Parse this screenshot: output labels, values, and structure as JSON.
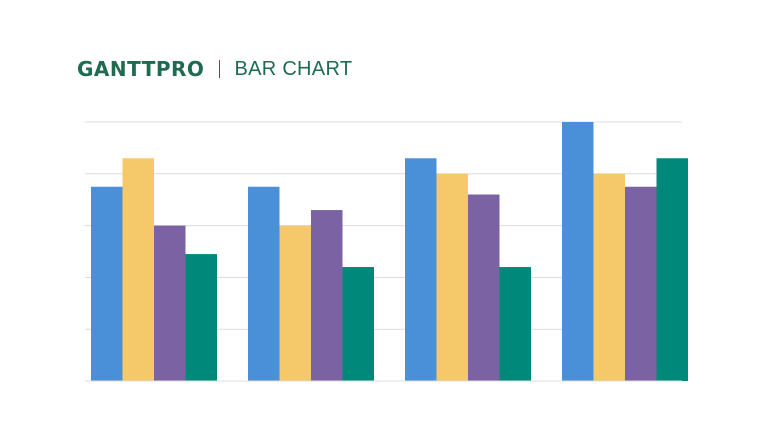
{
  "header": {
    "brand": "GANTTPRO",
    "title": "BAR CHART"
  },
  "colors": {
    "brand": "#1e6b4f",
    "series": [
      "#4a90d9",
      "#f5c96a",
      "#7b62a3",
      "#00897b"
    ],
    "grid": "#dcdcdc"
  },
  "chart_data": {
    "type": "bar",
    "title": "",
    "xlabel": "",
    "ylabel": "",
    "categories": [
      "",
      "",
      "",
      ""
    ],
    "ylim": [
      0,
      5
    ],
    "grid": true,
    "legend": "none",
    "series": [
      {
        "values": [
          3.75,
          3.75,
          4.3,
          5.0
        ]
      },
      {
        "values": [
          4.3,
          3.0,
          4.0,
          4.0
        ]
      },
      {
        "values": [
          3.0,
          3.3,
          3.6,
          3.75
        ]
      },
      {
        "values": [
          2.45,
          2.2,
          2.2,
          4.3
        ]
      }
    ]
  }
}
